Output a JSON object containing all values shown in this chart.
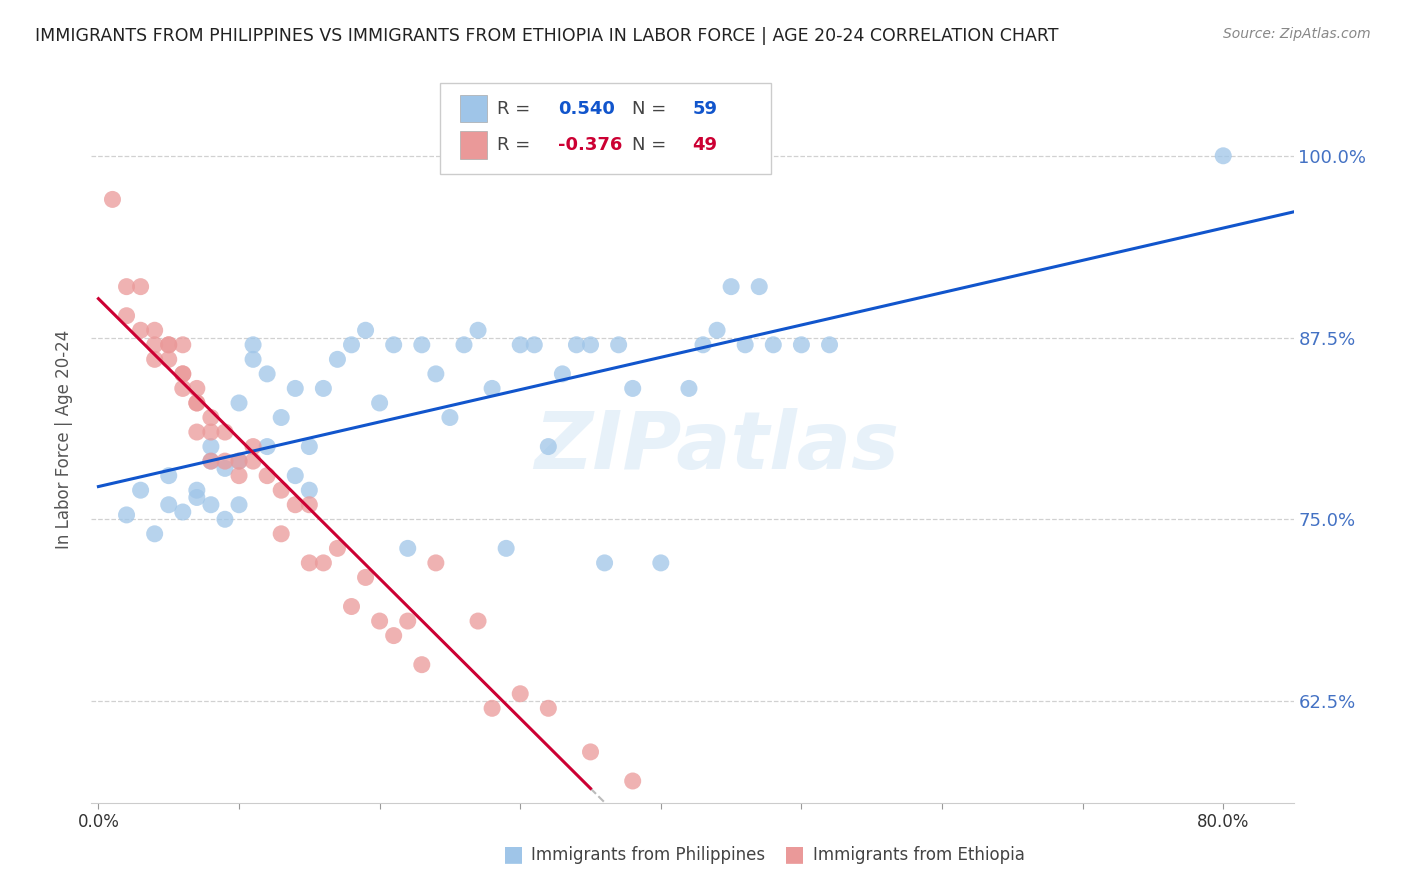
{
  "title": "IMMIGRANTS FROM PHILIPPINES VS IMMIGRANTS FROM ETHIOPIA IN LABOR FORCE | AGE 20-24 CORRELATION CHART",
  "source": "Source: ZipAtlas.com",
  "ylabel": "In Labor Force | Age 20-24",
  "xlim": [
    -0.005,
    0.85
  ],
  "ylim": [
    0.555,
    1.055
  ],
  "y_ticks": [
    0.625,
    0.75,
    0.875,
    1.0
  ],
  "y_tick_labels": [
    "62.5%",
    "75.0%",
    "87.5%",
    "100.0%"
  ],
  "x_ticks": [
    0.0,
    0.1,
    0.2,
    0.3,
    0.4,
    0.5,
    0.6,
    0.7,
    0.8
  ],
  "x_tick_labels": [
    "0.0%",
    "",
    "",
    "",
    "",
    "",
    "",
    "",
    "80.0%"
  ],
  "blue_color": "#9fc5e8",
  "pink_color": "#ea9999",
  "blue_line_color": "#1155cc",
  "pink_line_color": "#cc0033",
  "right_axis_color": "#4472c4",
  "watermark": "ZIPatlas",
  "philippines_x": [
    0.02,
    0.03,
    0.04,
    0.05,
    0.05,
    0.06,
    0.07,
    0.07,
    0.08,
    0.08,
    0.08,
    0.09,
    0.09,
    0.1,
    0.1,
    0.1,
    0.11,
    0.11,
    0.12,
    0.12,
    0.13,
    0.14,
    0.14,
    0.15,
    0.15,
    0.16,
    0.17,
    0.18,
    0.19,
    0.2,
    0.21,
    0.22,
    0.23,
    0.24,
    0.25,
    0.26,
    0.27,
    0.28,
    0.29,
    0.3,
    0.31,
    0.32,
    0.33,
    0.34,
    0.35,
    0.36,
    0.37,
    0.38,
    0.4,
    0.42,
    0.43,
    0.44,
    0.45,
    0.46,
    0.47,
    0.48,
    0.5,
    0.52,
    0.8
  ],
  "philippines_y": [
    0.753,
    0.77,
    0.74,
    0.76,
    0.78,
    0.755,
    0.765,
    0.77,
    0.76,
    0.79,
    0.8,
    0.75,
    0.785,
    0.83,
    0.79,
    0.76,
    0.86,
    0.87,
    0.85,
    0.8,
    0.82,
    0.78,
    0.84,
    0.8,
    0.77,
    0.84,
    0.86,
    0.87,
    0.88,
    0.83,
    0.87,
    0.73,
    0.87,
    0.85,
    0.82,
    0.87,
    0.88,
    0.84,
    0.73,
    0.87,
    0.87,
    0.8,
    0.85,
    0.87,
    0.87,
    0.72,
    0.87,
    0.84,
    0.72,
    0.84,
    0.87,
    0.88,
    0.91,
    0.87,
    0.91,
    0.87,
    0.87,
    0.87,
    1.0
  ],
  "ethiopia_x": [
    0.01,
    0.02,
    0.02,
    0.03,
    0.03,
    0.04,
    0.04,
    0.04,
    0.05,
    0.05,
    0.05,
    0.06,
    0.06,
    0.06,
    0.06,
    0.07,
    0.07,
    0.07,
    0.07,
    0.08,
    0.08,
    0.08,
    0.09,
    0.09,
    0.1,
    0.1,
    0.11,
    0.11,
    0.12,
    0.13,
    0.13,
    0.14,
    0.15,
    0.15,
    0.16,
    0.17,
    0.18,
    0.19,
    0.2,
    0.21,
    0.22,
    0.23,
    0.24,
    0.27,
    0.28,
    0.3,
    0.32,
    0.35,
    0.38
  ],
  "ethiopia_y": [
    0.97,
    0.91,
    0.89,
    0.91,
    0.88,
    0.87,
    0.88,
    0.86,
    0.87,
    0.87,
    0.86,
    0.85,
    0.87,
    0.85,
    0.84,
    0.84,
    0.83,
    0.83,
    0.81,
    0.82,
    0.81,
    0.79,
    0.79,
    0.81,
    0.79,
    0.78,
    0.79,
    0.8,
    0.78,
    0.77,
    0.74,
    0.76,
    0.76,
    0.72,
    0.72,
    0.73,
    0.69,
    0.71,
    0.68,
    0.67,
    0.68,
    0.65,
    0.72,
    0.68,
    0.62,
    0.63,
    0.62,
    0.59,
    0.57
  ]
}
